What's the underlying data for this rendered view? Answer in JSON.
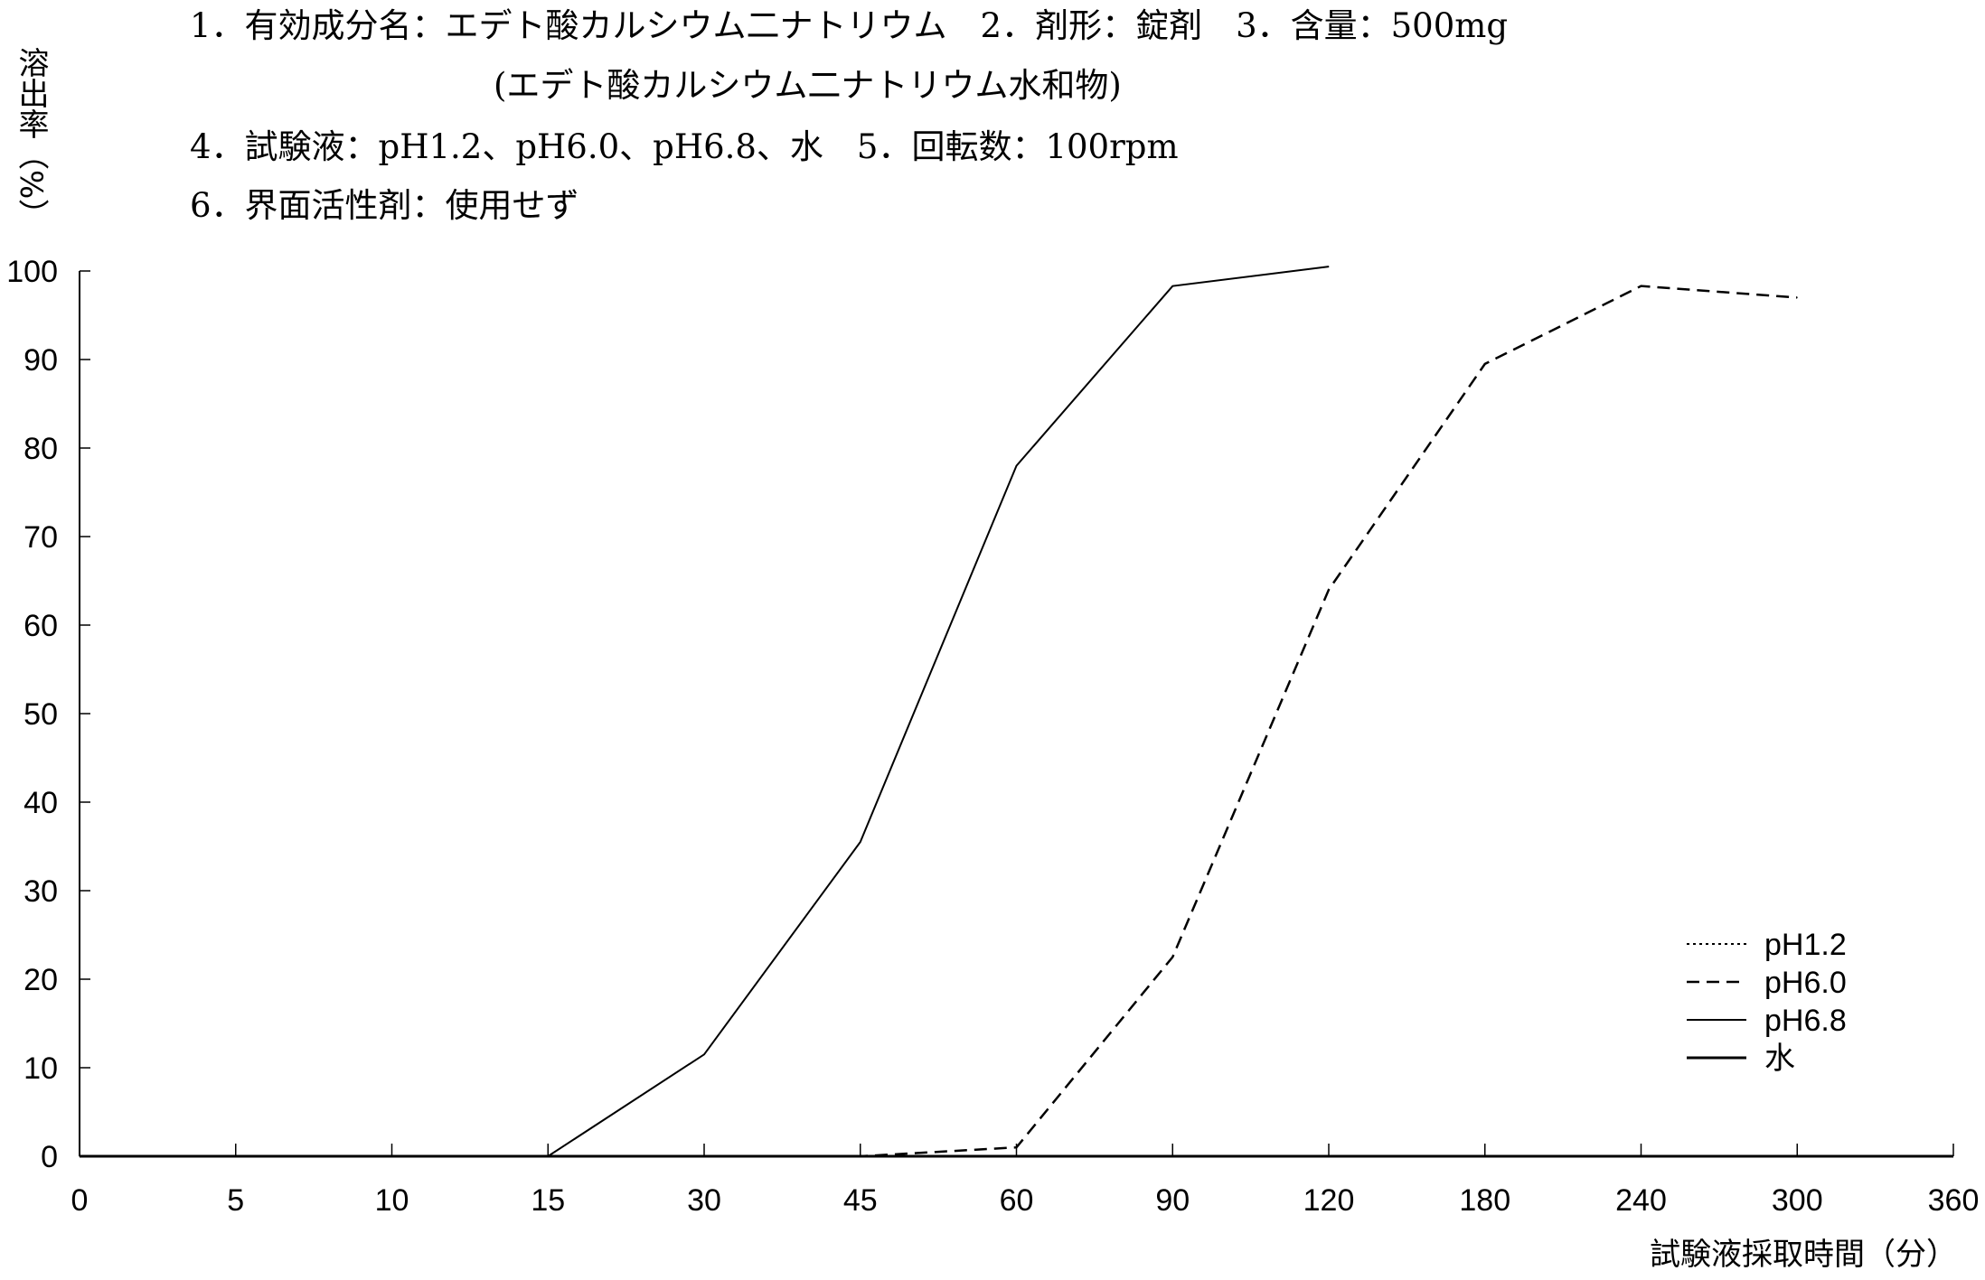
{
  "header": {
    "line1": "1．有効成分名：エデト酸カルシウム二ナトリウム　2．剤形：錠剤　3．含量：500mg",
    "line2": "(エデト酸カルシウム二ナトリウム水和物)",
    "line3": "4．試験液：pH1.2、pH6.0、pH6.8、水　5．回転数：100rpm",
    "line4": "6．界面活性剤：使用せず"
  },
  "chart_data": {
    "type": "line",
    "title": "",
    "xlabel": "試験液採取時間（分）",
    "ylabel": "溶出率（%）",
    "x_scale": "categorical (equally spaced)",
    "categories": [
      "0",
      "5",
      "10",
      "15",
      "30",
      "45",
      "60",
      "90",
      "120",
      "180",
      "240",
      "300",
      "360"
    ],
    "ylim": [
      0,
      100
    ],
    "yticks": [
      0,
      10,
      20,
      30,
      40,
      50,
      60,
      70,
      80,
      90,
      100
    ],
    "grid": false,
    "legend_position": "bottom-right",
    "series": [
      {
        "name": "pH1.2",
        "style": "dotted",
        "x": [
          "0",
          "5",
          "10",
          "15",
          "30",
          "45",
          "60",
          "90",
          "120",
          "180",
          "240",
          "300"
        ],
        "values": [
          0,
          0,
          0,
          0,
          0,
          0,
          0,
          0,
          0,
          0,
          0,
          0
        ]
      },
      {
        "name": "pH6.0",
        "style": "dashed",
        "x": [
          "0",
          "5",
          "10",
          "15",
          "30",
          "45",
          "60",
          "90",
          "120",
          "180",
          "240",
          "300"
        ],
        "values": [
          0,
          0,
          0,
          0,
          0,
          0,
          1,
          22.5,
          64,
          89.5,
          98.3,
          97
        ]
      },
      {
        "name": "pH6.8",
        "style": "solid-thin",
        "x": [
          "0",
          "5",
          "10",
          "15",
          "30",
          "45",
          "60",
          "90",
          "120"
        ],
        "values": [
          0,
          0,
          0,
          0,
          11.5,
          35.5,
          78,
          98.3,
          100.5
        ]
      },
      {
        "name": "水",
        "style": "solid",
        "x": [
          "0",
          "5",
          "10",
          "15",
          "30",
          "45",
          "60",
          "90",
          "120",
          "180",
          "240",
          "300"
        ],
        "values": [
          0,
          0,
          0,
          0,
          0,
          0,
          0,
          0,
          0,
          0,
          0,
          0
        ]
      }
    ]
  }
}
